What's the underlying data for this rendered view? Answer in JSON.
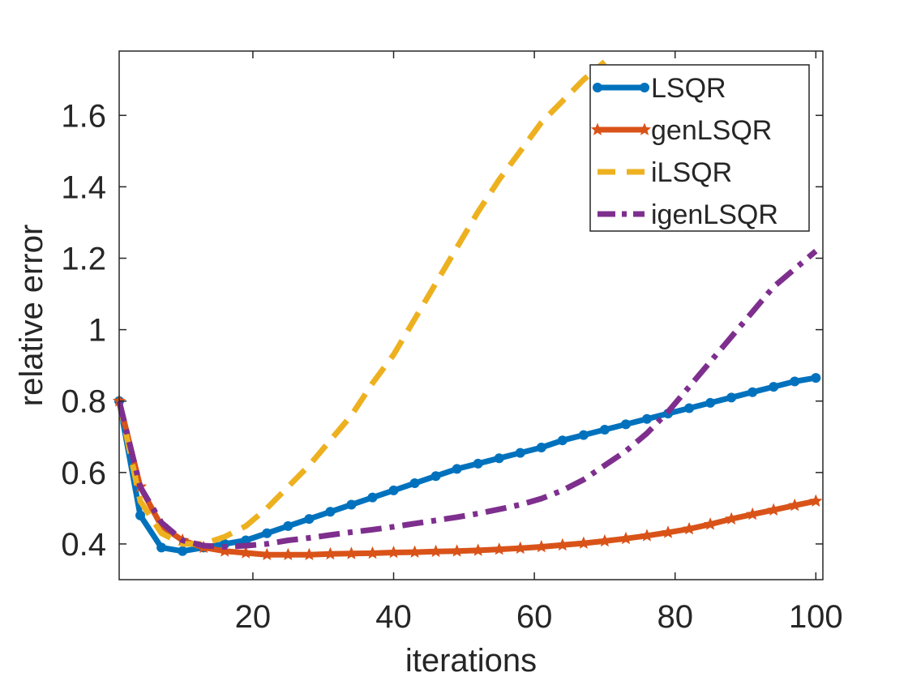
{
  "chart_data": {
    "type": "line",
    "title": "",
    "xlabel": "iterations",
    "ylabel": "relative error",
    "xlim": [
      1,
      101
    ],
    "ylim": [
      0.3,
      1.78
    ],
    "xticks": [
      20,
      40,
      60,
      80,
      100
    ],
    "yticks": [
      0.4,
      0.6,
      0.8,
      1,
      1.2,
      1.4,
      1.6
    ],
    "xtick_labels": [
      "20",
      "40",
      "60",
      "80",
      "100"
    ],
    "ytick_labels": [
      "0.4",
      "0.6",
      "0.8",
      "1",
      "1.2",
      "1.4",
      "1.6"
    ],
    "grid": false,
    "legend_position": "top-right",
    "series": [
      {
        "name": "LSQR",
        "color": "#0072BD",
        "style": "solid-dot",
        "x": [
          1,
          4,
          7,
          10,
          13,
          16,
          19,
          22,
          25,
          28,
          31,
          34,
          37,
          40,
          43,
          46,
          49,
          52,
          55,
          58,
          61,
          64,
          67,
          70,
          73,
          76,
          79,
          82,
          85,
          88,
          91,
          94,
          97,
          100
        ],
        "y": [
          0.8,
          0.48,
          0.39,
          0.38,
          0.39,
          0.4,
          0.41,
          0.43,
          0.45,
          0.47,
          0.49,
          0.51,
          0.53,
          0.55,
          0.57,
          0.59,
          0.61,
          0.625,
          0.64,
          0.655,
          0.67,
          0.69,
          0.705,
          0.72,
          0.735,
          0.75,
          0.765,
          0.78,
          0.795,
          0.81,
          0.825,
          0.84,
          0.855,
          0.865
        ]
      },
      {
        "name": "genLSQR",
        "color": "#D95319",
        "style": "solid-star",
        "x": [
          1,
          4,
          7,
          10,
          13,
          16,
          19,
          22,
          25,
          28,
          31,
          34,
          37,
          40,
          43,
          46,
          49,
          52,
          55,
          58,
          61,
          64,
          67,
          70,
          73,
          76,
          79,
          82,
          85,
          88,
          91,
          94,
          97,
          100
        ],
        "y": [
          0.8,
          0.56,
          0.45,
          0.41,
          0.39,
          0.38,
          0.375,
          0.37,
          0.37,
          0.37,
          0.372,
          0.373,
          0.374,
          0.376,
          0.377,
          0.379,
          0.38,
          0.382,
          0.385,
          0.388,
          0.392,
          0.397,
          0.402,
          0.408,
          0.415,
          0.423,
          0.432,
          0.442,
          0.455,
          0.47,
          0.483,
          0.495,
          0.508,
          0.52
        ]
      },
      {
        "name": "iLSQR",
        "color": "#EDB120",
        "style": "dashed",
        "x": [
          1,
          4,
          7,
          10,
          13,
          16,
          19,
          22,
          25,
          28,
          31,
          34,
          37,
          40,
          43,
          46,
          49,
          52,
          55,
          58,
          61,
          64,
          67,
          70
        ],
        "y": [
          0.8,
          0.52,
          0.43,
          0.4,
          0.4,
          0.42,
          0.45,
          0.5,
          0.56,
          0.62,
          0.69,
          0.76,
          0.85,
          0.93,
          1.03,
          1.13,
          1.23,
          1.33,
          1.42,
          1.5,
          1.58,
          1.64,
          1.7,
          1.75
        ]
      },
      {
        "name": "igenLSQR",
        "color": "#7E2F8E",
        "style": "dashdot",
        "x": [
          1,
          4,
          7,
          10,
          13,
          16,
          19,
          22,
          25,
          28,
          31,
          34,
          37,
          40,
          43,
          46,
          49,
          52,
          55,
          58,
          61,
          64,
          67,
          70,
          73,
          76,
          79,
          82,
          85,
          88,
          91,
          94,
          97,
          100
        ],
        "y": [
          0.8,
          0.56,
          0.46,
          0.41,
          0.395,
          0.392,
          0.395,
          0.4,
          0.41,
          0.417,
          0.425,
          0.433,
          0.44,
          0.448,
          0.457,
          0.466,
          0.475,
          0.485,
          0.497,
          0.51,
          0.527,
          0.55,
          0.58,
          0.62,
          0.66,
          0.71,
          0.77,
          0.84,
          0.91,
          0.98,
          1.05,
          1.12,
          1.17,
          1.22
        ]
      }
    ]
  }
}
